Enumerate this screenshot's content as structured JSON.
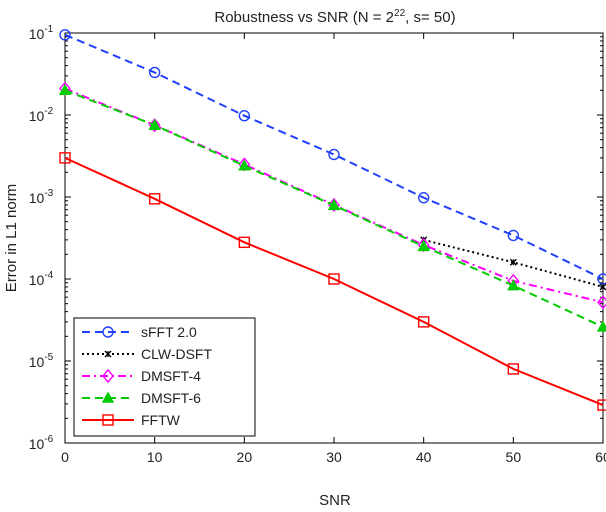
{
  "chart_data": {
    "type": "line",
    "title": {
      "main": "Robustness vs SNR (N = 2",
      "exp": "22",
      "rest": ", s= 50)"
    },
    "xlabel": "SNR",
    "ylabel": "Error in L1 norm",
    "xlim": [
      0,
      60
    ],
    "ylim": [
      1e-06,
      0.1
    ],
    "yscale": "log",
    "x_ticks": [
      "0",
      "10",
      "20",
      "30",
      "40",
      "50",
      "60"
    ],
    "y_ticks": [
      {
        "base": "10",
        "exp": "-6"
      },
      {
        "base": "10",
        "exp": "-5"
      },
      {
        "base": "10",
        "exp": "-4"
      },
      {
        "base": "10",
        "exp": "-3"
      },
      {
        "base": "10",
        "exp": "-2"
      },
      {
        "base": "10",
        "exp": "-1"
      }
    ],
    "grid": false,
    "legend_position": "bottom-left",
    "series": [
      {
        "name": "sFFT 2.0",
        "color": "#2040ff",
        "dash": "dashed",
        "marker": "circle",
        "x": [
          0,
          10,
          20,
          30,
          40,
          50,
          60
        ],
        "y": [
          0.095,
          0.033,
          0.0098,
          0.0033,
          0.00098,
          0.00034,
          0.0001
        ]
      },
      {
        "name": "CLW-DSFT",
        "color": "#000000",
        "dash": "dotted",
        "marker": "x",
        "x": [
          40,
          50,
          60
        ],
        "y": [
          0.0003,
          0.00016,
          8e-05
        ]
      },
      {
        "name": "DMSFT-4",
        "color": "#ff00ff",
        "dash": "dashdot",
        "marker": "diamond",
        "x": [
          0,
          10,
          20,
          30,
          40,
          50,
          60
        ],
        "y": [
          0.021,
          0.0075,
          0.0025,
          0.0008,
          0.00026,
          9.5e-05,
          5.2e-05
        ]
      },
      {
        "name": "DMSFT-6",
        "color": "#00cc00",
        "dash": "dashed",
        "marker": "triangle",
        "x": [
          0,
          10,
          20,
          30,
          40,
          50,
          60
        ],
        "y": [
          0.02,
          0.0075,
          0.0024,
          0.00079,
          0.00025,
          8.3e-05,
          2.6e-05
        ]
      },
      {
        "name": "FFTW",
        "color": "#ff0000",
        "dash": "solid",
        "marker": "square",
        "x": [
          0,
          10,
          20,
          30,
          40,
          50,
          60
        ],
        "y": [
          0.003,
          0.00095,
          0.00028,
          0.0001,
          3e-05,
          8e-06,
          2.9e-06
        ]
      }
    ]
  }
}
